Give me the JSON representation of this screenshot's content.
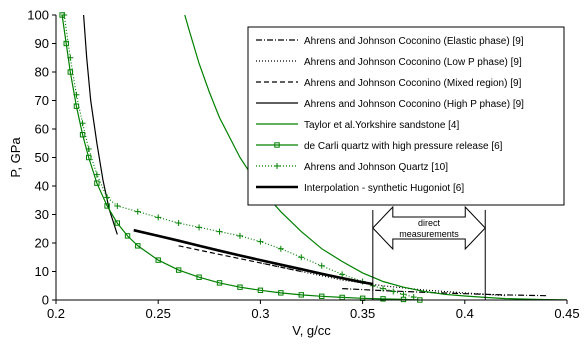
{
  "chart_data": {
    "type": "line",
    "xlabel": "V, g/cc",
    "ylabel": "P, GPa",
    "xlim": [
      0.2,
      0.45
    ],
    "ylim": [
      0,
      100
    ],
    "x_ticks": [
      "0.2",
      "0.25",
      "0.3",
      "0.35",
      "0.4",
      "0.45"
    ],
    "y_ticks": [
      "0",
      "10",
      "20",
      "30",
      "40",
      "50",
      "60",
      "70",
      "80",
      "90",
      "100"
    ],
    "grid": false,
    "legend_position": "top-right",
    "annotation": {
      "text_line1": "direct",
      "text_line2": "measurements",
      "x_range": [
        0.355,
        0.41
      ]
    },
    "series": [
      {
        "name": "Ahrens and Johnson Coconino (Elastic phase) [9]",
        "color": "#000000",
        "style": "dashdot",
        "x": [
          0.34,
          0.36,
          0.38,
          0.4,
          0.42,
          0.44
        ],
        "y": [
          4.0,
          3.3,
          2.7,
          2.2,
          1.8,
          1.5
        ]
      },
      {
        "name": "Ahrens and Johnson Coconino (Low P phase) [9]",
        "color": "#000000",
        "style": "dotted",
        "x": [
          0.3,
          0.32,
          0.34,
          0.36,
          0.38,
          0.4,
          0.42
        ],
        "y": [
          13.0,
          10.0,
          7.0,
          5.0,
          3.5,
          2.5,
          1.5
        ]
      },
      {
        "name": "Ahrens and Johnson Coconino (Mixed region) [9]",
        "color": "#000000",
        "style": "dashed",
        "x": [
          0.26,
          0.28,
          0.3,
          0.32
        ],
        "y": [
          19.0,
          16.0,
          13.0,
          10.0
        ]
      },
      {
        "name": "Ahrens and Johnson Coconino (High P phase) [9]",
        "color": "#000000",
        "style": "solid",
        "x": [
          0.2135,
          0.215,
          0.217,
          0.22,
          0.223,
          0.226,
          0.23
        ],
        "y": [
          100,
          85,
          70,
          55,
          42,
          32,
          23
        ]
      },
      {
        "name": "Taylor et al.Yorkshire sandstone [4]",
        "color": "#008000",
        "style": "solid",
        "x": [
          0.263,
          0.265,
          0.27,
          0.275,
          0.28,
          0.29,
          0.3,
          0.31,
          0.32,
          0.33,
          0.34,
          0.35,
          0.36,
          0.37,
          0.38,
          0.39,
          0.4,
          0.41,
          0.42,
          0.43,
          0.44,
          0.45
        ],
        "y": [
          100,
          95,
          83,
          73,
          64,
          50,
          39,
          31,
          24,
          18,
          13.5,
          9.5,
          6.5,
          4.5,
          3,
          2,
          1.4,
          0.9,
          0.5,
          0.3,
          0.15,
          0.05
        ]
      },
      {
        "name": "de Carli quartz with high pressure release [6]",
        "color": "#008000",
        "style": "solid-square",
        "x": [
          0.203,
          0.205,
          0.207,
          0.21,
          0.213,
          0.216,
          0.22,
          0.225,
          0.23,
          0.235,
          0.24,
          0.25,
          0.26,
          0.27,
          0.28,
          0.29,
          0.3,
          0.31,
          0.32,
          0.33,
          0.34,
          0.35,
          0.36,
          0.37,
          0.378
        ],
        "y": [
          100,
          90,
          80,
          68,
          58,
          50,
          41,
          33,
          27,
          22.5,
          19,
          14,
          10.5,
          8,
          6,
          4.5,
          3.4,
          2.5,
          1.8,
          1.3,
          0.9,
          0.6,
          0.4,
          0.2,
          0
        ]
      },
      {
        "name": "Ahrens and Johnson Quartz [10]",
        "color": "#008000",
        "style": "dotted-plus",
        "x": [
          0.204,
          0.207,
          0.21,
          0.213,
          0.216,
          0.22,
          0.225,
          0.23,
          0.24,
          0.25,
          0.26,
          0.27,
          0.28,
          0.29,
          0.3,
          0.31,
          0.32,
          0.33,
          0.34,
          0.35,
          0.355,
          0.36,
          0.365,
          0.37,
          0.375
        ],
        "y": [
          100,
          85,
          72,
          62,
          53,
          44,
          36,
          33,
          31,
          29,
          27,
          25.5,
          24,
          22.5,
          20.5,
          18,
          15,
          12,
          9,
          6.5,
          5,
          4,
          3,
          2,
          1
        ]
      },
      {
        "name": "Interpolation - synthetic Hugoniot [6]",
        "color": "#000000",
        "style": "thick",
        "x": [
          0.238,
          0.25,
          0.26,
          0.27,
          0.28,
          0.29,
          0.3,
          0.31,
          0.32,
          0.33,
          0.34,
          0.35,
          0.355
        ],
        "y": [
          24.5,
          22.5,
          20.8,
          19.0,
          17.3,
          15.6,
          14.0,
          12.4,
          10.8,
          9.2,
          7.7,
          6.2,
          5.6
        ]
      }
    ]
  }
}
